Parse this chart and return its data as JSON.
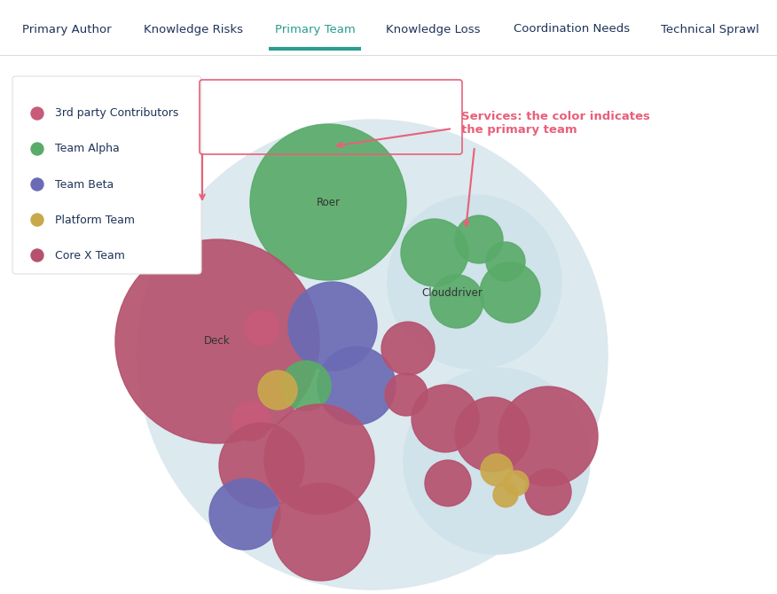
{
  "fig_width": 8.76,
  "fig_height": 6.7,
  "dpi": 100,
  "bg_color": "#ffffff",
  "nav_tabs": [
    "Primary Author",
    "Knowledge Risks",
    "Primary Team",
    "Knowledge Loss",
    "Coordination Needs",
    "Technical Sprawl"
  ],
  "active_tab": "Primary Team",
  "active_tab_color": "#2a9d8f",
  "inactive_tab_color": "#1e3358",
  "underline_color": "#2a9d8f",
  "separator_color": "#dddddd",
  "legend_items": [
    {
      "label": "3rd party Contributors",
      "color": "#c75b78"
    },
    {
      "label": "Team Alpha",
      "color": "#5aab6a"
    },
    {
      "label": "Team Beta",
      "color": "#6b6bb5"
    },
    {
      "label": "Platform Team",
      "color": "#c9a84c"
    },
    {
      "label": "Core X Team",
      "color": "#b5526e"
    }
  ],
  "annotation_text": "Services: the color indicates\nthe primary team",
  "annotation_color": "#e8607a",
  "bg_circle_color": "#dce9ef",
  "sub_circle_color": "#d0e2ea",
  "label_color": "#333333"
}
